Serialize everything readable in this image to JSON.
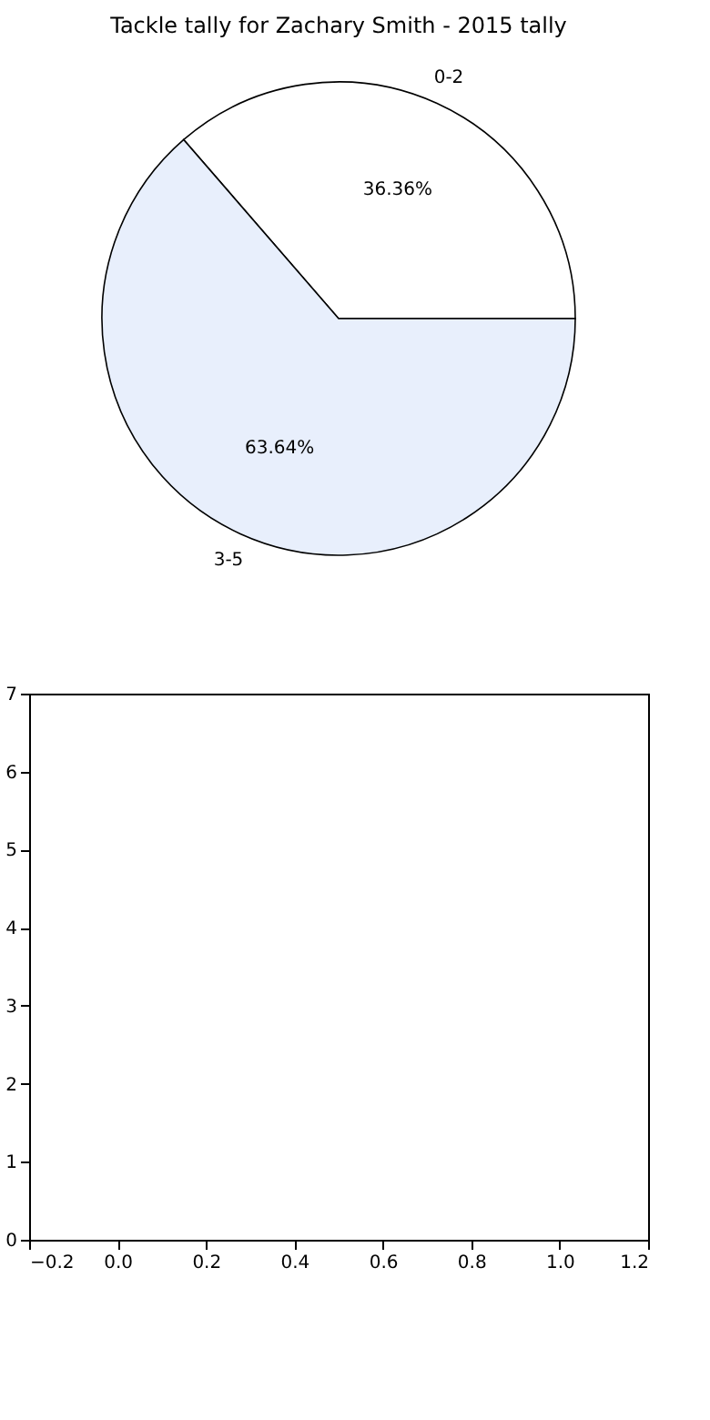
{
  "chart_data": [
    {
      "type": "pie",
      "title": "Tackle tally for Zachary Smith - 2015 tally",
      "categories": [
        "0-2",
        "3-5"
      ],
      "values": [
        36.36,
        63.64
      ],
      "colors": [
        "#ffffff",
        "#e8effc"
      ],
      "value_labels": [
        "36.36%",
        "63.64%"
      ]
    },
    {
      "type": "scatter",
      "xlim": [
        -0.2,
        1.2
      ],
      "ylim": [
        0,
        7
      ],
      "xticks": [
        {
          "value": -0.2,
          "label": "−0.2"
        },
        {
          "value": 0.0,
          "label": "0.0"
        },
        {
          "value": 0.2,
          "label": "0.2"
        },
        {
          "value": 0.4,
          "label": "0.4"
        },
        {
          "value": 0.6,
          "label": "0.6"
        },
        {
          "value": 0.8,
          "label": "0.8"
        },
        {
          "value": 1.0,
          "label": "1.0"
        },
        {
          "value": 1.2,
          "label": "1.2"
        }
      ],
      "yticks": [
        0,
        1,
        2,
        3,
        4,
        5,
        6,
        7
      ]
    }
  ]
}
